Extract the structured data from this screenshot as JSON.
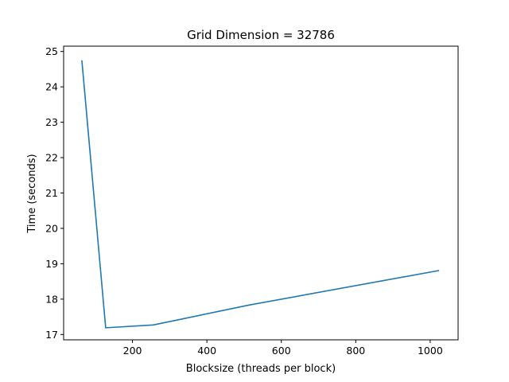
{
  "chart_data": {
    "type": "line",
    "title": "Grid Dimension = 32786",
    "xlabel": "Blocksize (threads per block)",
    "ylabel": "Time (seconds)",
    "xlim": [
      15,
      1075
    ],
    "ylim": [
      16.85,
      25.15
    ],
    "xticks": [
      200,
      400,
      600,
      800,
      1000
    ],
    "yticks": [
      17,
      18,
      19,
      20,
      21,
      22,
      23,
      24,
      25
    ],
    "grid": false,
    "legend": "none",
    "series": [
      {
        "color": "#1f77b4",
        "x": [
          64,
          128,
          256,
          512,
          1024
        ],
        "y": [
          24.75,
          17.19,
          17.27,
          17.83,
          18.81
        ]
      }
    ]
  }
}
